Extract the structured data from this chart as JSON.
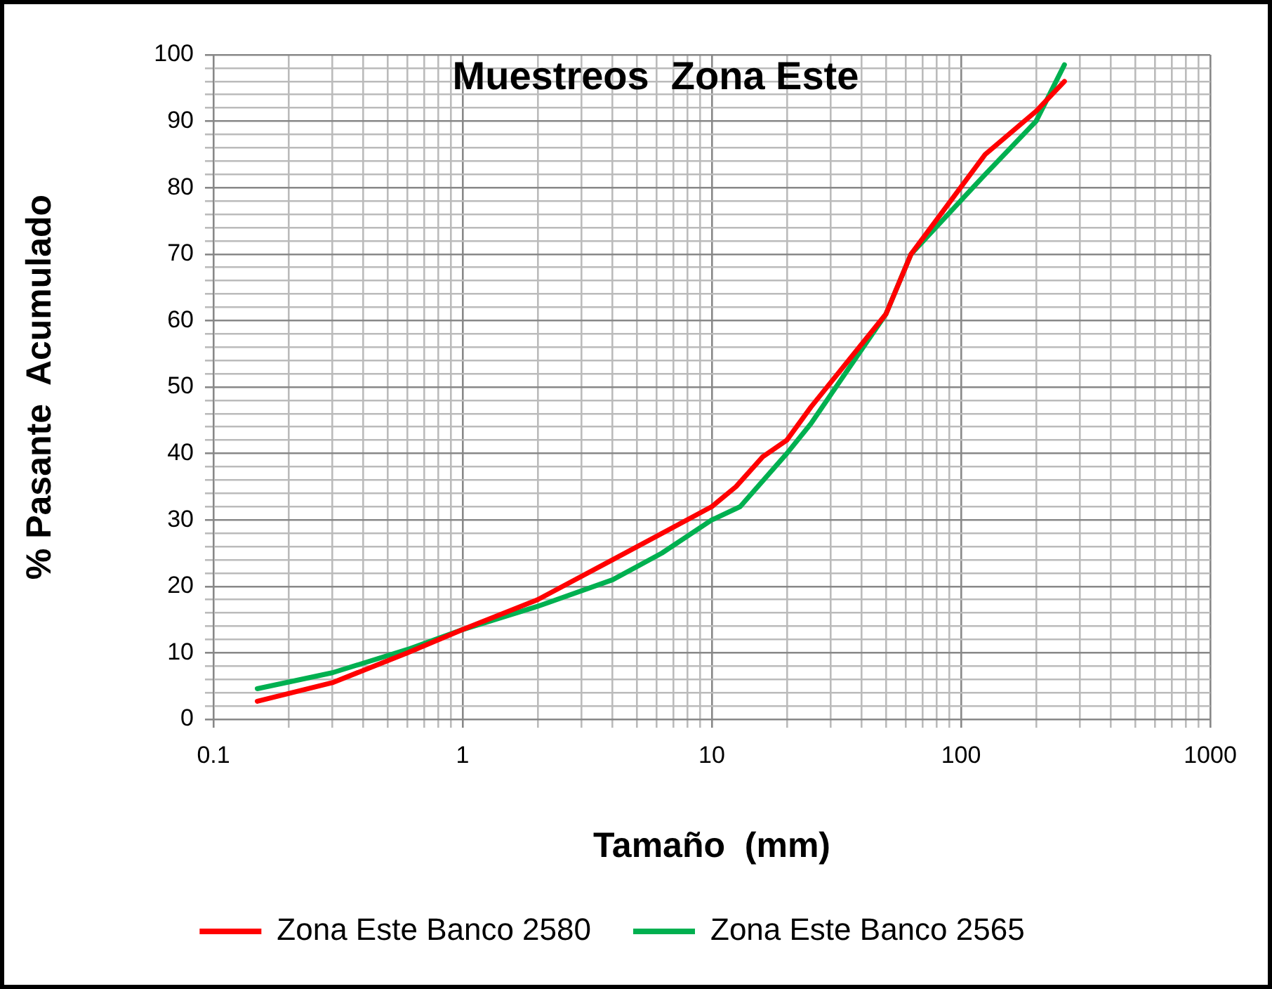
{
  "chart_data": {
    "type": "line",
    "title": "Muestreos  Zona Este",
    "xlabel": "Tamaño  (mm)",
    "ylabel": "% Pasante  Acumulado",
    "log": "x",
    "xlim": [
      0.1,
      1000
    ],
    "xticks": [
      0.1,
      1,
      10,
      100,
      1000
    ],
    "ylim": [
      0,
      100
    ],
    "yticks": [
      0,
      10,
      20,
      30,
      40,
      50,
      60,
      70,
      80,
      90,
      100
    ],
    "grid": true,
    "legend": "bottom",
    "marker": "none",
    "series": [
      {
        "name": "Zona Este Banco 2580",
        "color": "#ff0000",
        "x": [
          0.15,
          0.3,
          0.6,
          1,
          2,
          4,
          10,
          12.5,
          16,
          20,
          25,
          50,
          63,
          125,
          200,
          260
        ],
        "values": [
          2.7,
          5.5,
          10,
          13.5,
          18,
          24,
          32,
          35,
          39.5,
          42,
          47,
          61,
          70,
          85,
          91.5,
          96
        ]
      },
      {
        "name": "Zona Este Banco 2565",
        "color": "#00b050",
        "x": [
          0.15,
          0.3,
          0.6,
          1,
          2,
          4,
          6.3,
          10,
          13,
          20,
          25,
          50,
          63,
          125,
          200,
          260
        ],
        "values": [
          4.6,
          7,
          10.5,
          13.5,
          17,
          21,
          25,
          30,
          32,
          40,
          44.5,
          61,
          70,
          82,
          90,
          98.5
        ]
      }
    ]
  }
}
